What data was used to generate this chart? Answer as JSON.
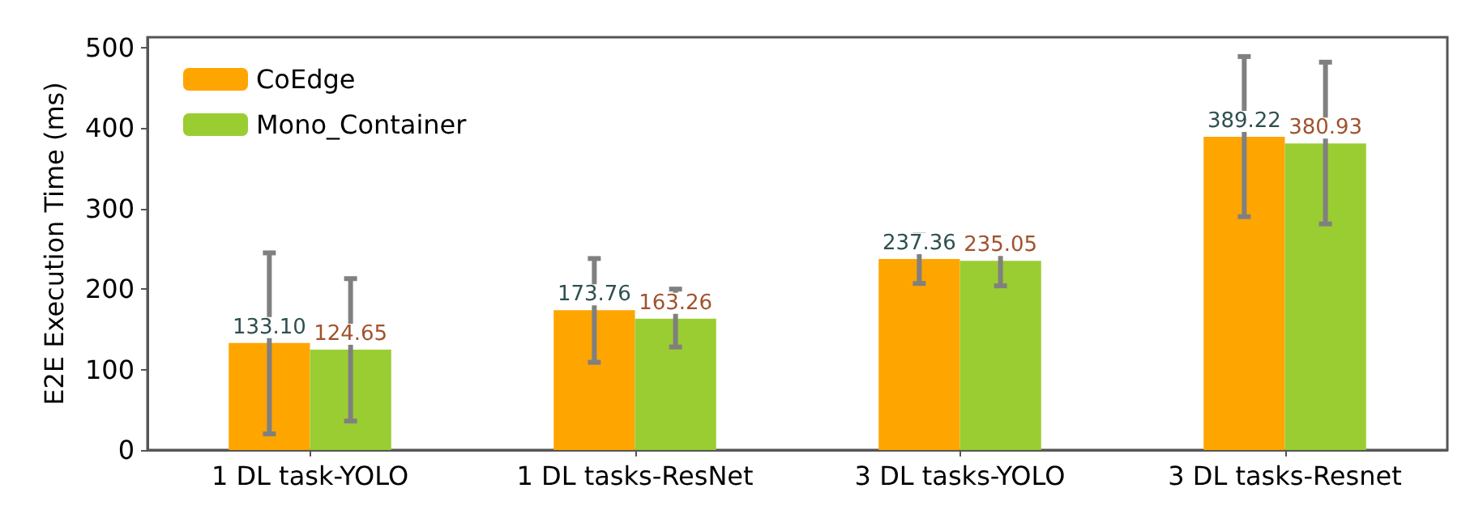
{
  "chart_data": {
    "type": "bar",
    "ylabel": "E2E Execution Time (ms)",
    "categories": [
      "1 DL task-YOLO",
      "1 DL tasks-ResNet",
      "3 DL tasks-YOLO",
      "3 DL tasks-Resnet"
    ],
    "series": [
      {
        "name": "CoEdge",
        "color": "#ffa500",
        "values": [
          133.1,
          173.76,
          237.36,
          389.22
        ],
        "errors": [
          [
            20,
            245
          ],
          [
            109,
            238
          ],
          [
            207,
            267
          ],
          [
            290,
            489
          ]
        ],
        "value_labels": [
          "133.10",
          "173.76",
          "237.36",
          "389.22"
        ]
      },
      {
        "name": "Mono_Container",
        "color": "#9acd32",
        "values": [
          124.65,
          163.26,
          235.05,
          380.93
        ],
        "errors": [
          [
            36,
            213
          ],
          [
            128,
            200
          ],
          [
            204,
            264
          ],
          [
            281,
            482
          ]
        ],
        "value_labels": [
          "124.65",
          "163.26",
          "235.05",
          "380.93"
        ]
      }
    ],
    "ylim": [
      0,
      513
    ],
    "yticks": [
      0,
      100,
      200,
      300,
      400,
      500
    ],
    "grid": false,
    "legend": "top left"
  }
}
